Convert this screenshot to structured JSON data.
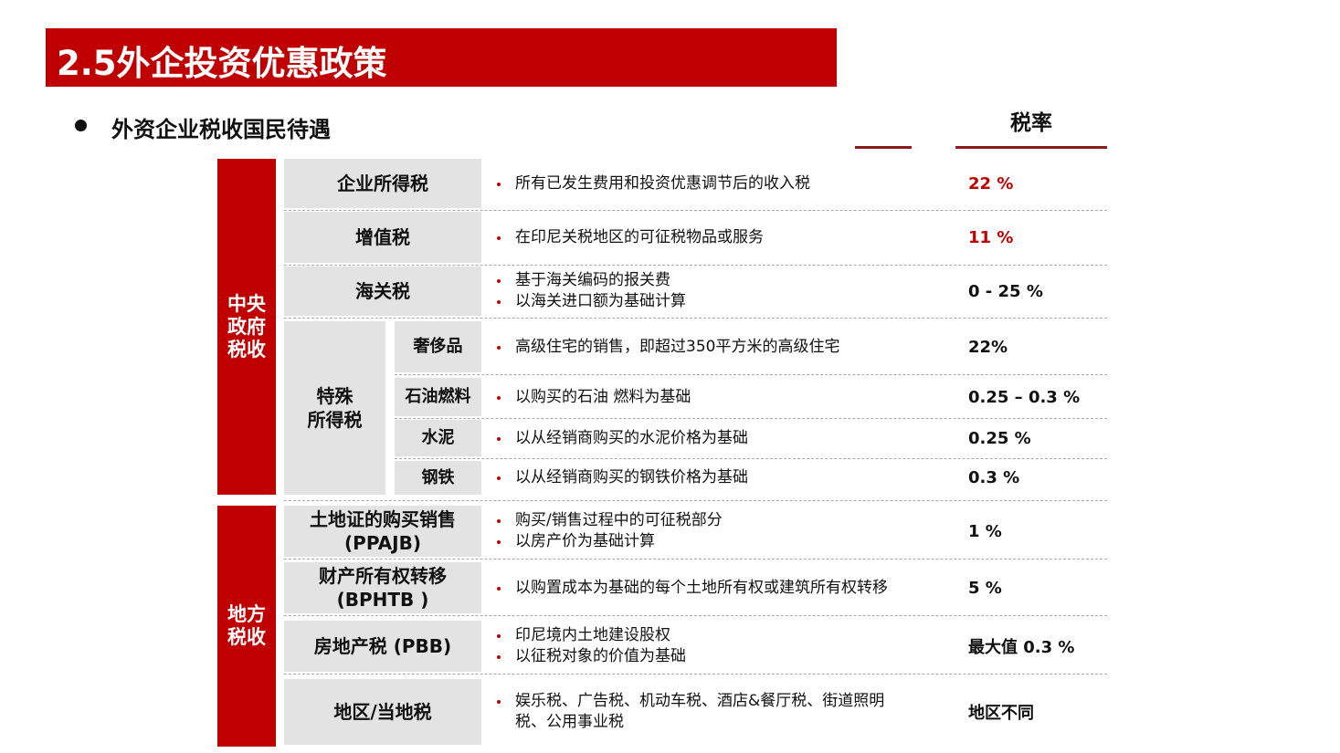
{
  "header": {
    "title": "2.5外企投资优惠政策"
  },
  "bullet": "外资企业税收国民待遇",
  "rate_header": "税率",
  "groups": [
    {
      "label": "中央政府税收",
      "rows": [
        {
          "name": [
            "企业所得税"
          ],
          "items": [
            "所有已发生费用和投资优惠调节后的收入税"
          ],
          "rate": "22 %",
          "color": "#c00000"
        },
        {
          "name": [
            "增值税"
          ],
          "items": [
            "在印尼关税地区的可征税物品或服务"
          ],
          "rate": "11 %",
          "color": "#c00000"
        },
        {
          "name": [
            "海关税"
          ],
          "items": [
            "基于海关编码的报关费",
            "以海关进口额为基础计算"
          ],
          "rate": "0  - 25 %"
        },
        {
          "name": [
            "特殊",
            "所得税"
          ],
          "subs": [
            {
              "name": "奢侈品",
              "items": [
                "高级住宅的销售，即超过350平方米的高级住宅"
              ],
              "rate": "22%"
            },
            {
              "name": "石油燃料",
              "items": [
                "以购买的石油 燃料为基础"
              ],
              "rate": "0.25 – 0.3 %"
            },
            {
              "name": "水泥",
              "items": [
                "以从经销商购买的水泥价格为基础"
              ],
              "rate": "0.25 %"
            },
            {
              "name": "钢铁",
              "items": [
                "以从经销商购买的钢铁价格为基础"
              ],
              "rate": "0.3 %"
            }
          ]
        }
      ]
    },
    {
      "label": "地方税收",
      "rows": [
        {
          "name": [
            "土地证的购买销售",
            "(PPAJB)"
          ],
          "items": [
            "购买/销售过程中的可征税部分",
            "以房产价为基础计算"
          ],
          "rate": "1 %"
        },
        {
          "name": [
            "财产所有权转移",
            "(BPHTB )"
          ],
          "items": [
            "以购置成本为基础的每个土地所有权或建筑所有权转移"
          ],
          "rate": "5 %"
        },
        {
          "name": [
            "房地产税 (PBB)"
          ],
          "items": [
            "印尼境内土地建设股权",
            "以征税对象的价值为基础"
          ],
          "rate": "最大值 0.3 %"
        },
        {
          "name": [
            "地区/当地税"
          ],
          "items": [
            "娱乐税、广告税、机动车税、酒店&餐厅税、街道照明税、公用事业税"
          ],
          "rate": "地区不同"
        }
      ]
    }
  ]
}
